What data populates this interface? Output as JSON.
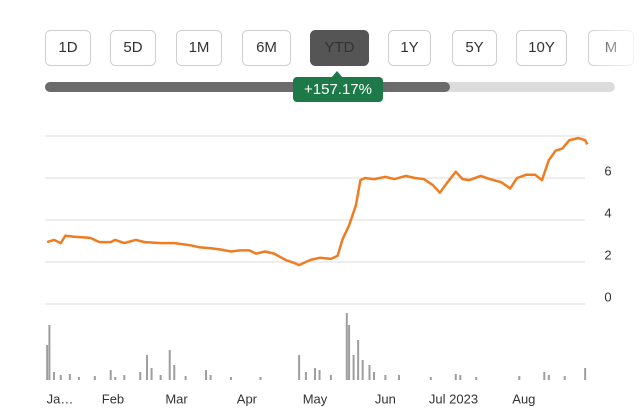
{
  "range_buttons": [
    "1D",
    "5D",
    "1M",
    "6M",
    "YTD",
    "1Y",
    "5Y",
    "10Y",
    "M"
  ],
  "selected_button": 4,
  "change_label": "+157.17%",
  "chart_data": [
    {
      "type": "line",
      "color": "#f07c22",
      "x": [
        3,
        6,
        9,
        11,
        15,
        22,
        26,
        31,
        33,
        37,
        42,
        46,
        53,
        59,
        66,
        70,
        75,
        79,
        84,
        88,
        92,
        95,
        99,
        103,
        108,
        112,
        114,
        119,
        123,
        128,
        131,
        133,
        136,
        139,
        141,
        143,
        147,
        152,
        156,
        161,
        165,
        169,
        173,
        176,
        179,
        183,
        186,
        189,
        194,
        198,
        203,
        207,
        210,
        214,
        218,
        221,
        224,
        227,
        230,
        233,
        237,
        240,
        241
      ],
      "values": [
        2.95,
        3.05,
        2.9,
        3.25,
        3.2,
        3.15,
        2.95,
        2.95,
        3.05,
        2.9,
        3.05,
        2.95,
        2.9,
        2.9,
        2.8,
        2.7,
        2.65,
        2.6,
        2.5,
        2.55,
        2.55,
        2.4,
        2.5,
        2.4,
        2.1,
        1.95,
        1.85,
        2.1,
        2.2,
        2.15,
        2.3,
        3.05,
        3.75,
        4.7,
        5.9,
        6.0,
        5.95,
        6.05,
        5.95,
        6.1,
        6.0,
        5.95,
        5.65,
        5.3,
        5.75,
        6.3,
        5.95,
        5.9,
        6.1,
        5.95,
        5.8,
        5.5,
        6.0,
        6.15,
        6.15,
        5.9,
        6.85,
        7.3,
        7.4,
        7.8,
        7.9,
        7.8,
        7.6
      ],
      "xlim": [
        1,
        245
      ],
      "xticks": [
        {
          "value": 1,
          "label": "Ja…"
        },
        {
          "value": 32,
          "label": "Feb"
        },
        {
          "value": 60,
          "label": "Mar"
        },
        {
          "value": 91,
          "label": "Apr"
        },
        {
          "value": 121,
          "label": "May"
        },
        {
          "value": 152,
          "label": "Jun"
        },
        {
          "value": 182,
          "label": "Jul 2023"
        },
        {
          "value": 213,
          "label": "Aug"
        }
      ],
      "ylim": [
        0,
        8
      ],
      "yticks": [
        0,
        2,
        4,
        6
      ],
      "grid": true
    },
    {
      "type": "bar",
      "color": "#9e9e9e",
      "x": [
        3,
        4,
        6,
        9,
        13,
        17,
        24,
        31,
        33,
        37,
        44,
        47,
        49,
        53,
        57,
        59,
        64,
        73,
        75,
        84,
        97,
        114,
        117,
        121,
        123,
        128,
        135,
        136,
        138,
        140,
        142,
        145,
        147,
        152,
        158,
        172,
        183,
        185,
        192,
        211,
        222,
        224,
        231,
        240
      ],
      "values": [
        35,
        55,
        8,
        5,
        6,
        3,
        4,
        10,
        3,
        5,
        8,
        25,
        12,
        5,
        30,
        15,
        4,
        10,
        5,
        3,
        3,
        25,
        8,
        12,
        10,
        5,
        67,
        55,
        25,
        40,
        20,
        15,
        8,
        5,
        5,
        3,
        6,
        5,
        3,
        4,
        8,
        5,
        4,
        12
      ],
      "xlim": [
        1,
        245
      ],
      "ylim": [
        0,
        70
      ]
    }
  ]
}
